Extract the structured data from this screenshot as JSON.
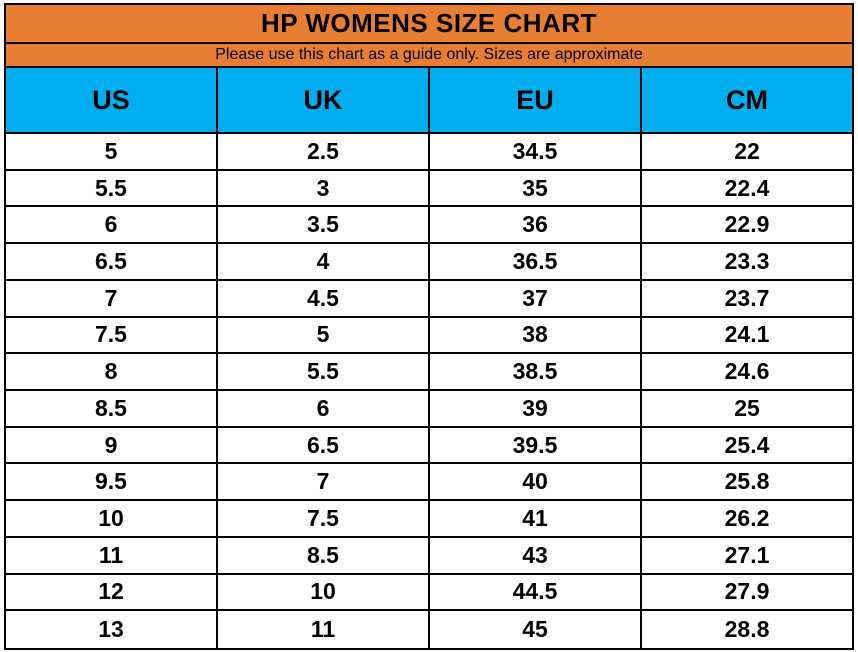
{
  "title": "HP WOMENS SIZE CHART",
  "subtitle": "Please use this chart as a guide only. Sizes are approximate",
  "colors": {
    "title_band": "#E87E33",
    "header_band": "#00AEEF",
    "grid_border": "#000000",
    "row_background": "#FFFFFF",
    "text": "#000000"
  },
  "chart_data": {
    "type": "table",
    "title": "HP WOMENS SIZE CHART",
    "subtitle": "Please use this chart as a guide only. Sizes are approximate",
    "columns": [
      "US",
      "UK",
      "EU",
      "CM"
    ],
    "rows": [
      [
        "5",
        "2.5",
        "34.5",
        "22"
      ],
      [
        "5.5",
        "3",
        "35",
        "22.4"
      ],
      [
        "6",
        "3.5",
        "36",
        "22.9"
      ],
      [
        "6.5",
        "4",
        "36.5",
        "23.3"
      ],
      [
        "7",
        "4.5",
        "37",
        "23.7"
      ],
      [
        "7.5",
        "5",
        "38",
        "24.1"
      ],
      [
        "8",
        "5.5",
        "38.5",
        "24.6"
      ],
      [
        "8.5",
        "6",
        "39",
        "25"
      ],
      [
        "9",
        "6.5",
        "39.5",
        "25.4"
      ],
      [
        "9.5",
        "7",
        "40",
        "25.8"
      ],
      [
        "10",
        "7.5",
        "41",
        "26.2"
      ],
      [
        "11",
        "8.5",
        "43",
        "27.1"
      ],
      [
        "12",
        "10",
        "44.5",
        "27.9"
      ],
      [
        "13",
        "11",
        "45",
        "28.8"
      ]
    ]
  }
}
